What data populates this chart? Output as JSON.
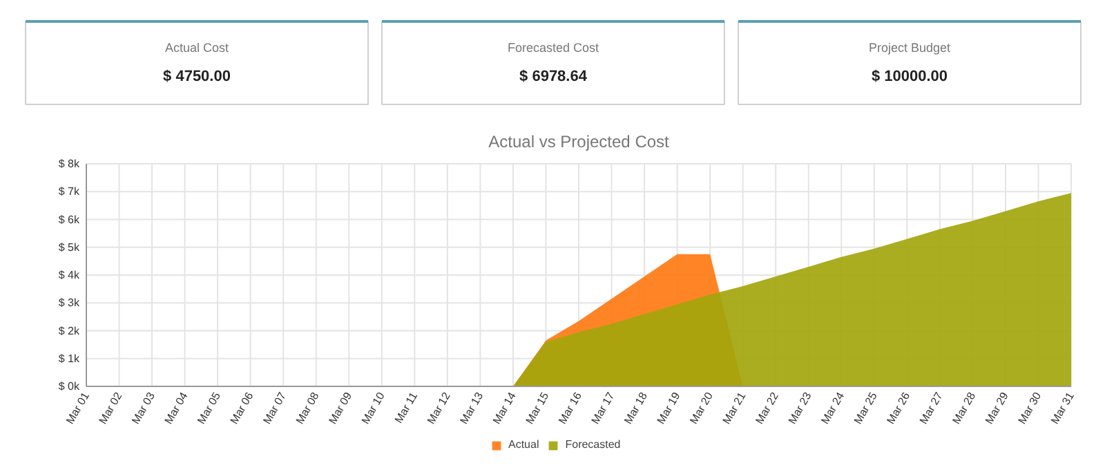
{
  "chart_data": [
    {
      "type": "other",
      "title": "Actual Cost",
      "annotations": [
        "$ 4750.00"
      ]
    },
    {
      "type": "other",
      "title": "Forecasted Cost",
      "annotations": [
        "$ 6978.64"
      ]
    },
    {
      "type": "other",
      "title": "Project Budget",
      "annotations": [
        "$ 10000.00"
      ]
    },
    {
      "type": "area",
      "title": "Actual vs Projected Cost",
      "categories": [
        "Mar 01",
        "Mar 02",
        "Mar 03",
        "Mar 04",
        "Mar 05",
        "Mar 06",
        "Mar 07",
        "Mar 08",
        "Mar 09",
        "Mar 10",
        "Mar 11",
        "Mar 12",
        "Mar 13",
        "Mar 14",
        "Mar 15",
        "Mar 16",
        "Mar 17",
        "Mar 18",
        "Mar 19",
        "Mar 20",
        "Mar 21",
        "Mar 22",
        "Mar 23",
        "Mar 24",
        "Mar 25",
        "Mar 26",
        "Mar 27",
        "Mar 28",
        "Mar 29",
        "Mar 30",
        "Mar 31"
      ],
      "series": [
        {
          "name": "Actual",
          "color": "#ff7a14",
          "values": [
            0,
            0,
            0,
            0,
            0,
            0,
            0,
            0,
            0,
            0,
            0,
            0,
            0,
            0,
            1650,
            2350,
            3150,
            3950,
            4750,
            4750,
            0,
            null,
            null,
            null,
            null,
            null,
            null,
            null,
            null,
            null,
            null
          ]
        },
        {
          "name": "Forecasted",
          "color": "#a3a60c",
          "values": [
            0,
            0,
            0,
            0,
            0,
            0,
            0,
            0,
            0,
            0,
            0,
            0,
            0,
            0,
            1600,
            1950,
            2250,
            2600,
            2950,
            3300,
            3600,
            3950,
            4300,
            4650,
            4950,
            5300,
            5650,
            5950,
            6300,
            6650,
            6950
          ]
        }
      ],
      "ylim": [
        0,
        8000
      ],
      "yticks": [
        {
          "value": 0,
          "label": "$ 0k"
        },
        {
          "value": 1000,
          "label": "$ 1k"
        },
        {
          "value": 2000,
          "label": "$ 2k"
        },
        {
          "value": 3000,
          "label": "$ 3k"
        },
        {
          "value": 4000,
          "label": "$ 4k"
        },
        {
          "value": 5000,
          "label": "$ 5k"
        },
        {
          "value": 6000,
          "label": "$ 6k"
        },
        {
          "value": 7000,
          "label": "$ 7k"
        },
        {
          "value": 8000,
          "label": "$ 8k"
        }
      ],
      "grid": true,
      "legend": "bottom"
    }
  ]
}
